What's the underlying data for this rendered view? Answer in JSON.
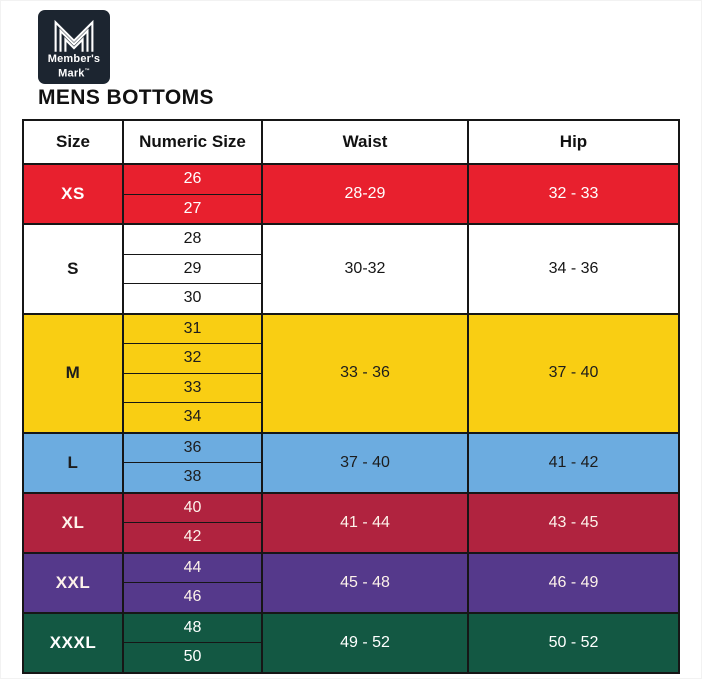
{
  "logo": {
    "brand_line1": "Member's",
    "brand_line2": "Mark",
    "trademark": "™",
    "bg_color": "#1c2530"
  },
  "title": "MENS BOTTOMS",
  "table": {
    "headers": [
      "Size",
      "Numeric Size",
      "Waist",
      "Hip"
    ],
    "border_color": "#161616",
    "groups": [
      {
        "size": "XS",
        "numeric_sizes": [
          "26",
          "27"
        ],
        "waist": "28-29",
        "hip": "32 - 33",
        "bg": "#e8202e",
        "text": "#ffffff"
      },
      {
        "size": "S",
        "numeric_sizes": [
          "28",
          "29",
          "30"
        ],
        "waist": "30-32",
        "hip": "34 - 36",
        "bg": "#ffffff",
        "text": "#161616"
      },
      {
        "size": "M",
        "numeric_sizes": [
          "31",
          "32",
          "33",
          "34"
        ],
        "waist": "33 - 36",
        "hip": "37 - 40",
        "bg": "#f9ce13",
        "text": "#1d1d1d"
      },
      {
        "size": "L",
        "numeric_sizes": [
          "36",
          "38"
        ],
        "waist": "37 - 40",
        "hip": "41 - 42",
        "bg": "#6cace0",
        "text": "#1d1d1d"
      },
      {
        "size": "XL",
        "numeric_sizes": [
          "40",
          "42"
        ],
        "waist": "41 - 44",
        "hip": "43 - 45",
        "bg": "#b0233f",
        "text": "#fdf2ea"
      },
      {
        "size": "XXL",
        "numeric_sizes": [
          "44",
          "46"
        ],
        "waist": "45 - 48",
        "hip": "46 - 49",
        "bg": "#55398b",
        "text": "#fdf2ea"
      },
      {
        "size": "XXXL",
        "numeric_sizes": [
          "48",
          "50"
        ],
        "waist": "49 - 52",
        "hip": "50 - 52",
        "bg": "#135843",
        "text": "#ffffff"
      }
    ]
  },
  "chart_data": {
    "type": "table",
    "title": "MENS BOTTOMS",
    "columns": [
      "Size",
      "Numeric Size",
      "Waist",
      "Hip"
    ],
    "rows": [
      [
        "XS",
        "26",
        "28-29",
        "32 - 33"
      ],
      [
        "XS",
        "27",
        "28-29",
        "32 - 33"
      ],
      [
        "S",
        "28",
        "30-32",
        "34 - 36"
      ],
      [
        "S",
        "29",
        "30-32",
        "34 - 36"
      ],
      [
        "S",
        "30",
        "30-32",
        "34 - 36"
      ],
      [
        "M",
        "31",
        "33 - 36",
        "37 - 40"
      ],
      [
        "M",
        "32",
        "33 - 36",
        "37 - 40"
      ],
      [
        "M",
        "33",
        "33 - 36",
        "37 - 40"
      ],
      [
        "M",
        "34",
        "33 - 36",
        "37 - 40"
      ],
      [
        "L",
        "36",
        "37 - 40",
        "41 - 42"
      ],
      [
        "L",
        "38",
        "37 - 40",
        "41 - 42"
      ],
      [
        "XL",
        "40",
        "41 - 44",
        "43 - 45"
      ],
      [
        "XL",
        "42",
        "41 - 44",
        "43 - 45"
      ],
      [
        "XXL",
        "44",
        "45 - 48",
        "46 - 49"
      ],
      [
        "XXL",
        "46",
        "45 - 48",
        "46 - 49"
      ],
      [
        "XXXL",
        "48",
        "49 - 52",
        "50 - 52"
      ],
      [
        "XXXL",
        "50",
        "49 - 52",
        "50 - 52"
      ]
    ]
  }
}
